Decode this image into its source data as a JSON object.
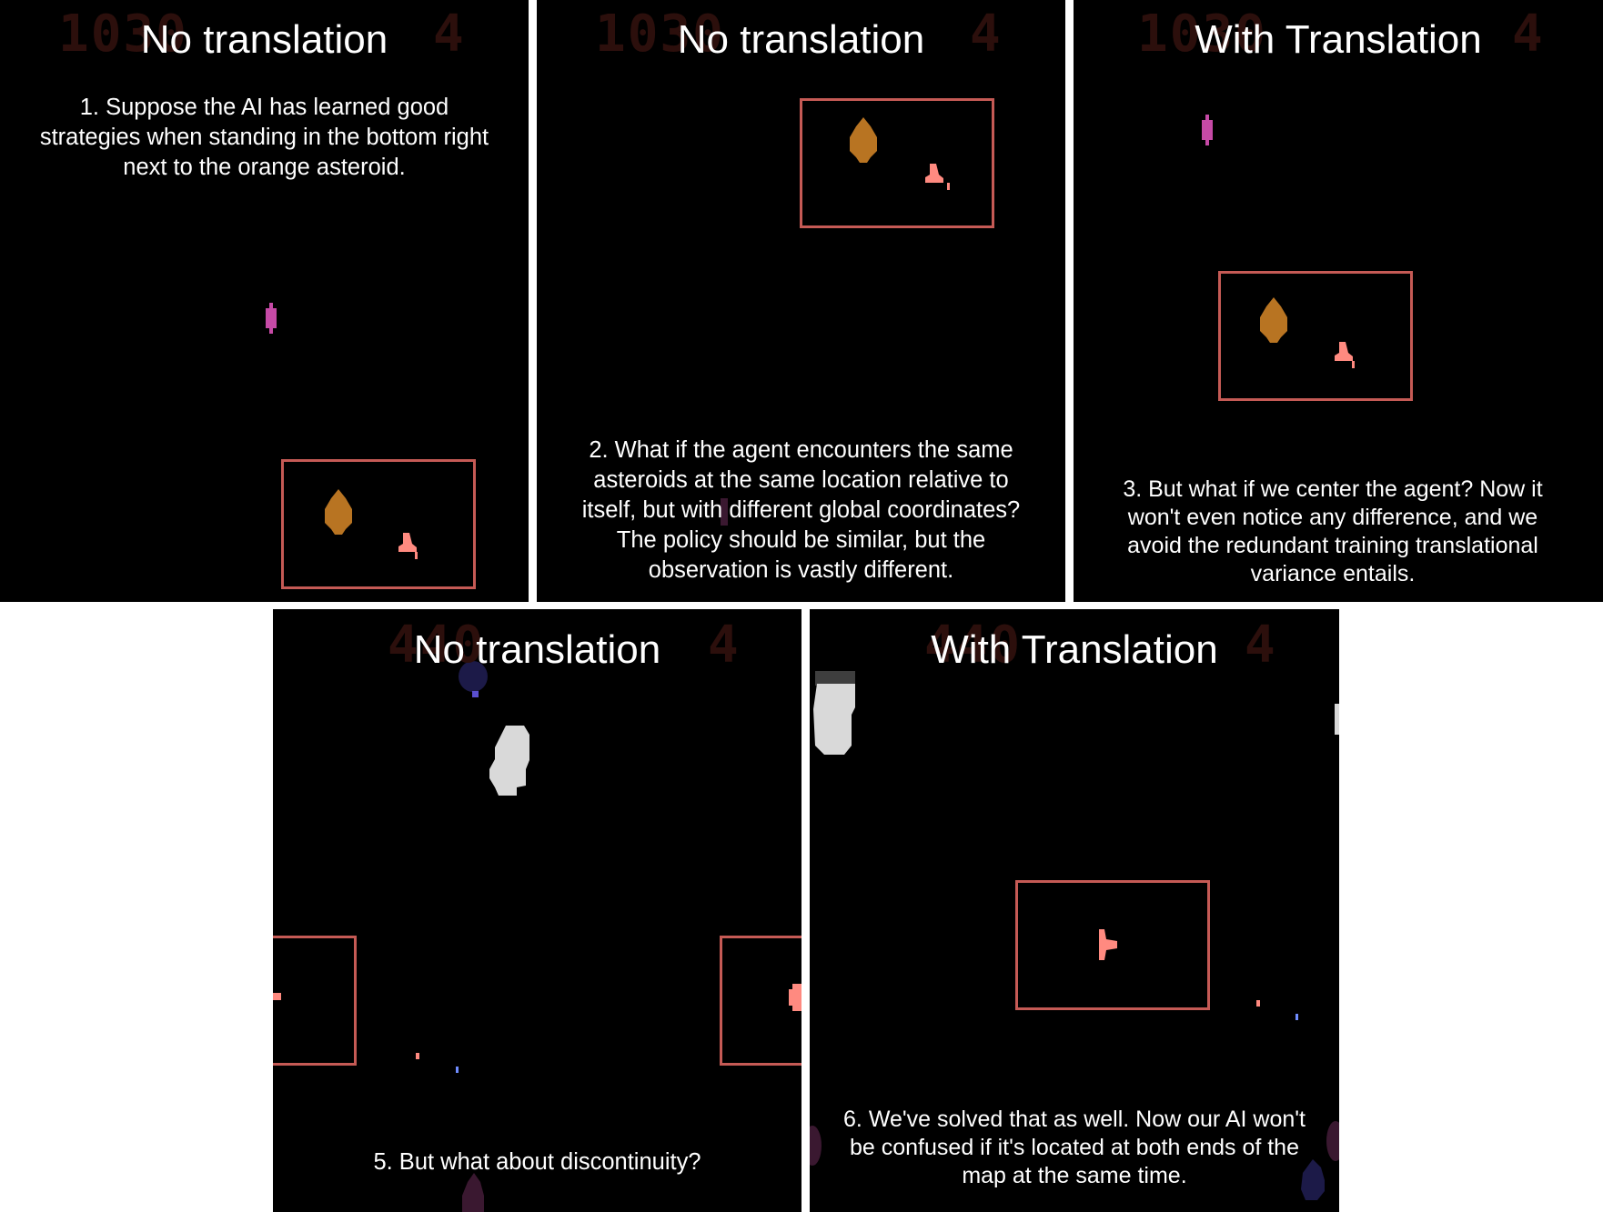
{
  "colors": {
    "frame_border": "#c55a55",
    "hud": "#2c0f0c",
    "orange_asteroid": "#b87422",
    "agent": "#ff8a80",
    "magenta_ship": "#c64aa6",
    "white_asteroid": "#d9d9d9"
  },
  "panels": [
    {
      "id": "p1",
      "title": "No translation",
      "hud_score": "1030",
      "hud_lives": "4",
      "caption": "1. Suppose the AI has learned good strategies when standing in the bottom right next to the orange asteroid."
    },
    {
      "id": "p2",
      "title": "No translation",
      "hud_score": "1030",
      "hud_lives": "4",
      "caption": "2. What if the agent encounters the same asteroids at the same location relative to itself, but with different global coordinates? The policy should be similar, but the observation is vastly different."
    },
    {
      "id": "p3",
      "title": "With Translation",
      "hud_score": "1030",
      "hud_lives": "4",
      "caption": "3. But what if we center the agent? Now it won't even notice any difference, and we avoid the redundant training translational variance entails."
    },
    {
      "id": "p5",
      "title": "No translation",
      "hud_score": "440",
      "hud_lives": "4",
      "caption": "5. But what about discontinuity?"
    },
    {
      "id": "p6",
      "title": "With Translation",
      "hud_score": "440",
      "hud_lives": "4",
      "caption": "6. We've solved that as well. Now our AI won't be confused if it's located at both ends of the map at the same time."
    }
  ]
}
